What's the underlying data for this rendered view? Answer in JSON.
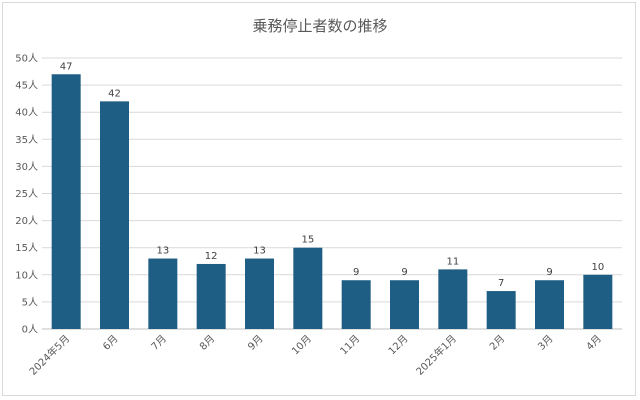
{
  "chart_data": {
    "type": "bar",
    "title": "乗務停止者数の推移",
    "categories": [
      "2024年5月",
      "6月",
      "7月",
      "8月",
      "9月",
      "10月",
      "11月",
      "12月",
      "2025年1月",
      "2月",
      "3月",
      "4月"
    ],
    "values": [
      47,
      42,
      13,
      12,
      13,
      15,
      9,
      9,
      11,
      7,
      9,
      10
    ],
    "ylim": [
      0,
      50
    ],
    "yticks": [
      "0人",
      "5人",
      "10人",
      "15人",
      "20人",
      "25人",
      "30人",
      "35人",
      "40人",
      "45人",
      "50人"
    ],
    "bar_color": "#1f5e84",
    "grid": true,
    "legend": "none"
  }
}
